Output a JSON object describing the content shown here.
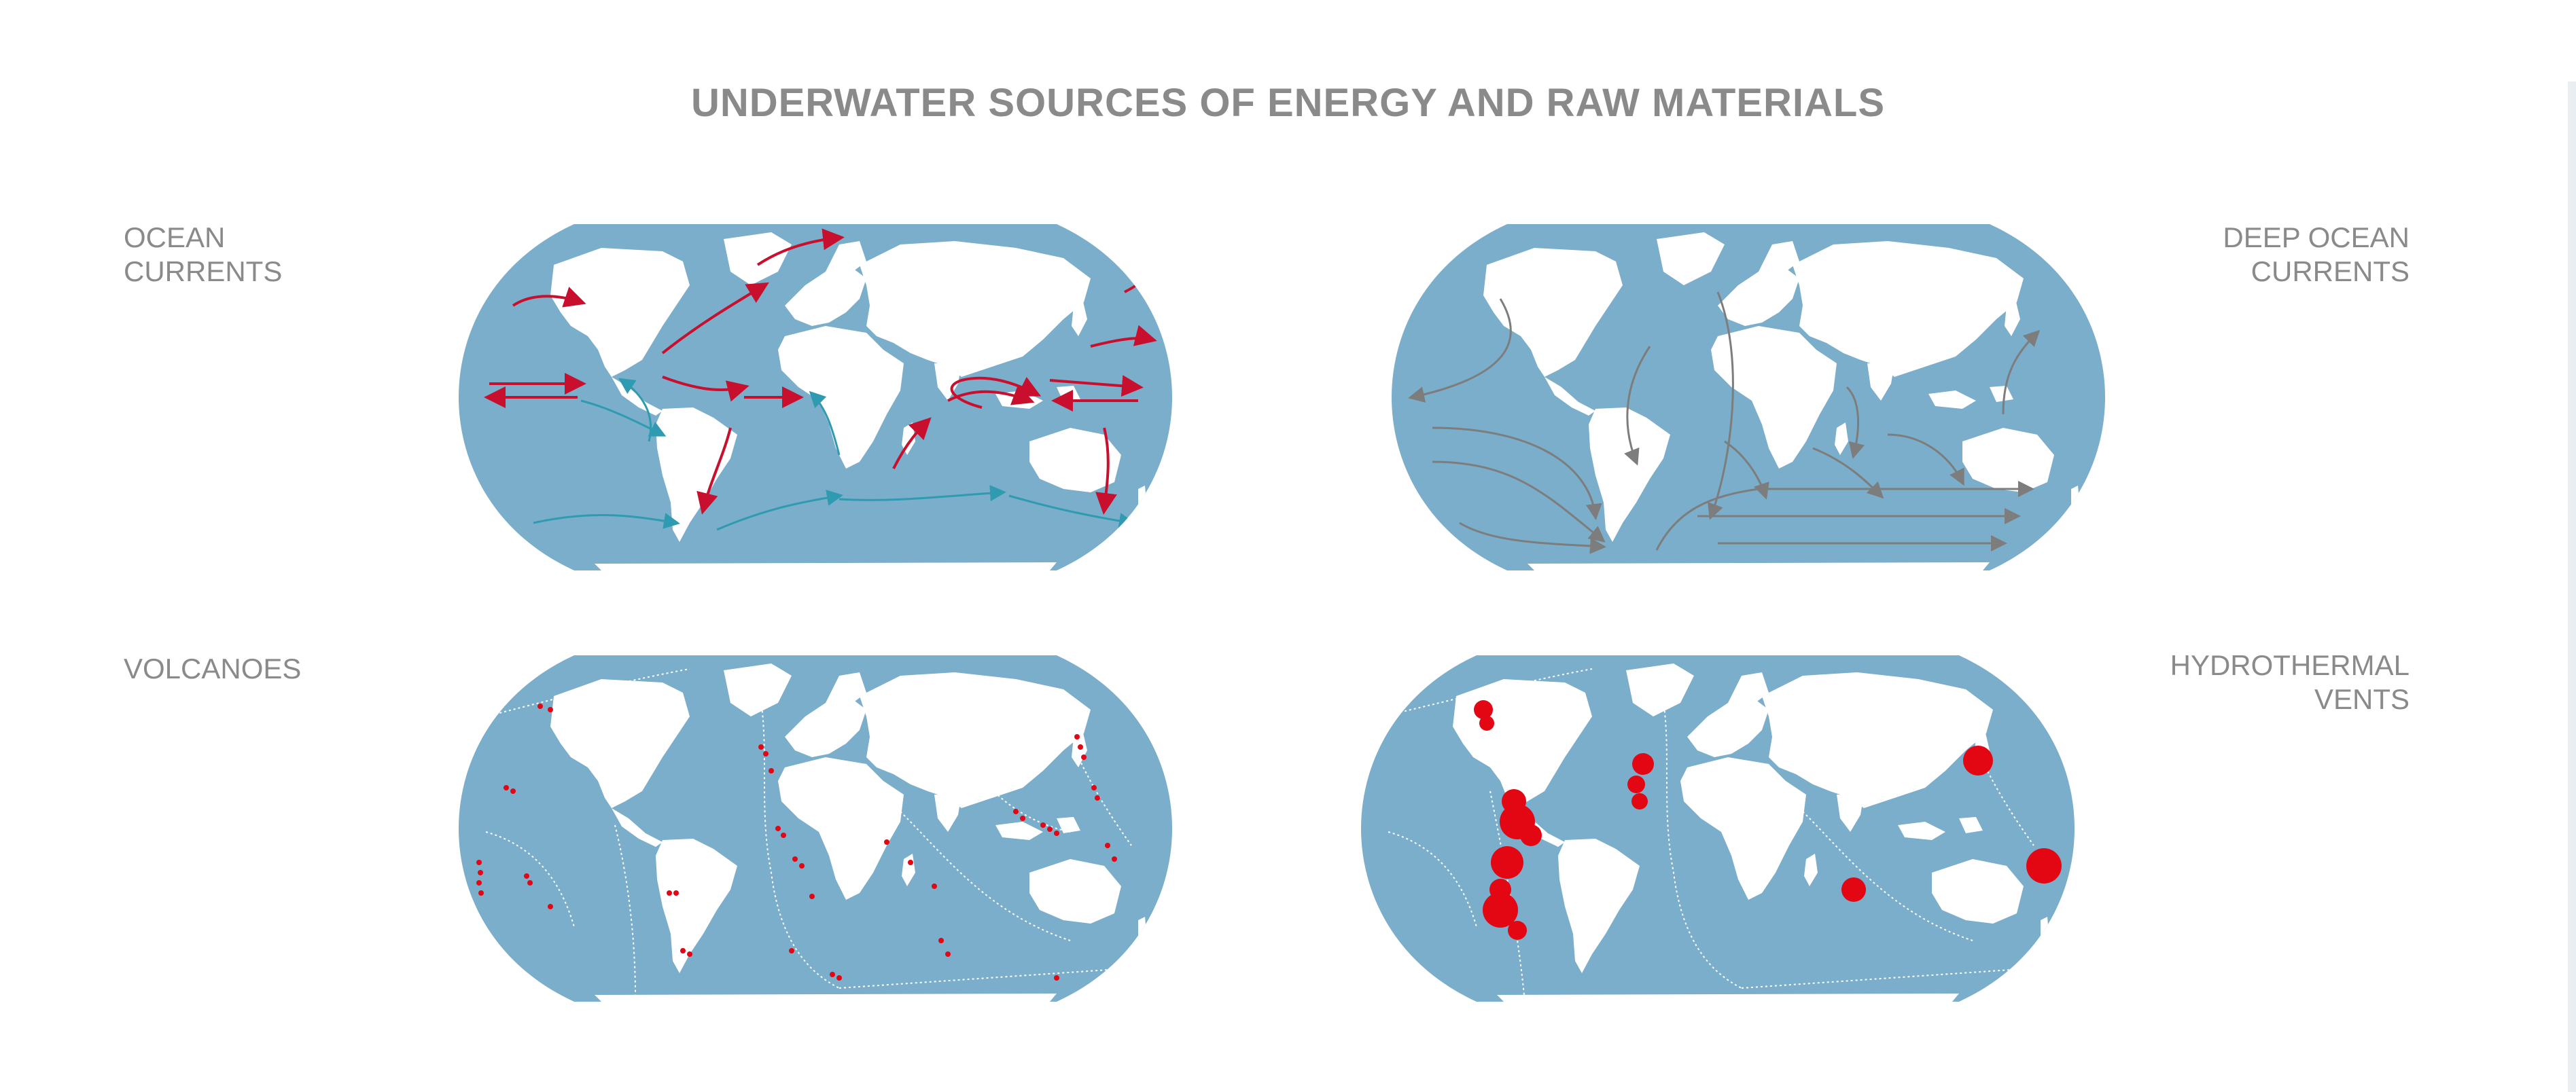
{
  "title": "UNDERWATER SOURCES OF ENERGY AND RAW MATERIALS",
  "panels": {
    "ocean_currents": {
      "label_line1": "OCEAN",
      "label_line2": "CURRENTS"
    },
    "deep_ocean_currents": {
      "label_line1": "DEEP OCEAN",
      "label_line2": "CURRENTS"
    },
    "volcanoes": {
      "label_line1": "VOLCANOES"
    },
    "hydrothermal_vents": {
      "label_line1": "HYDROTHERMAL",
      "label_line2": "VENTS"
    }
  },
  "colors": {
    "ocean": "#7aaecb",
    "land": "#ffffff",
    "warm_current": "#c8102e",
    "cold_current": "#2f9bb0",
    "deep_current": "#7d7d7d",
    "volcano_marker": "#e30613",
    "vent_marker": "#e30613",
    "plate_boundary": "#ffffff",
    "label_text": "#8a8a8a"
  },
  "map_projection": "robinson-style world map",
  "markers": {
    "volcanoes": "small red dots along plate boundaries and hotspots",
    "hydrothermal_vents": "red circles of varying size along plate boundaries"
  }
}
